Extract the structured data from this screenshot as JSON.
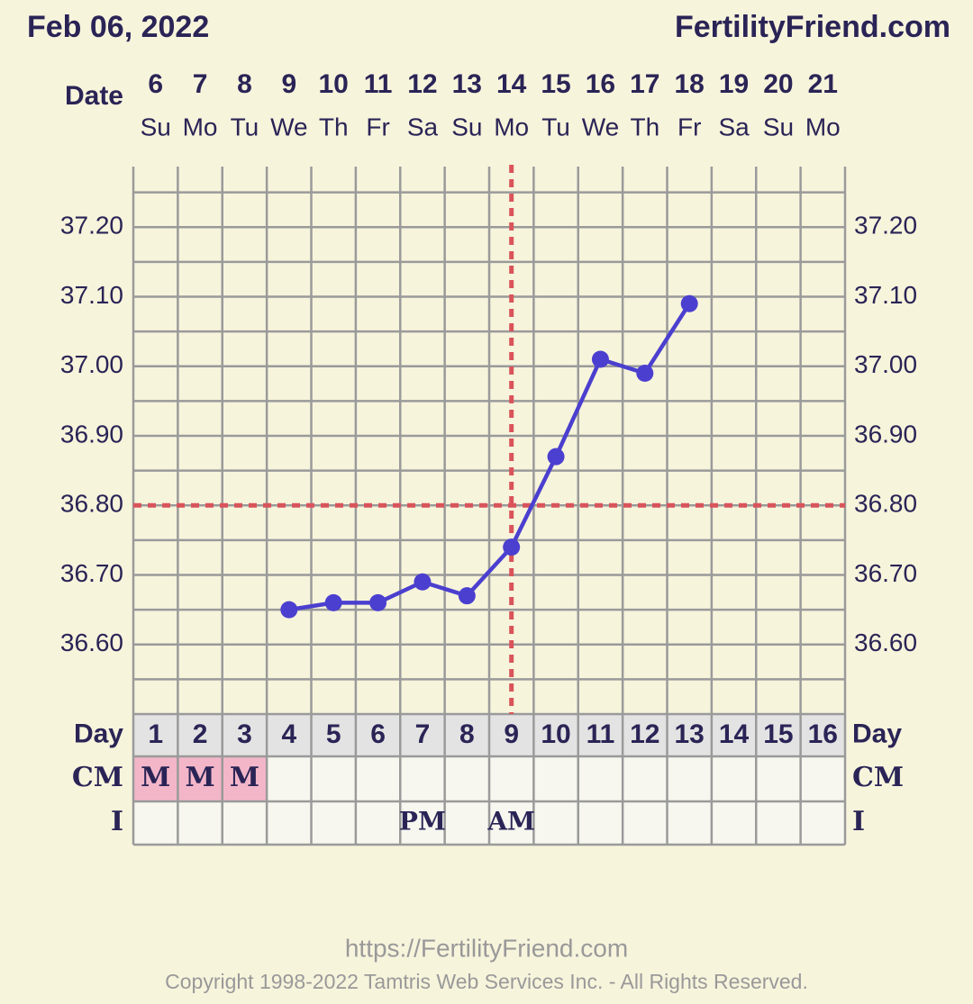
{
  "chart_data": {
    "type": "line",
    "title": "Feb 06, 2022",
    "site": "FertilityFriend.com",
    "date_label": "Date",
    "dates": [
      6,
      7,
      8,
      9,
      10,
      11,
      12,
      13,
      14,
      15,
      16,
      17,
      18,
      19,
      20,
      21
    ],
    "weekdays": [
      "Su",
      "Mo",
      "Tu",
      "We",
      "Th",
      "Fr",
      "Sa",
      "Su",
      "Mo",
      "Tu",
      "We",
      "Th",
      "Fr",
      "Sa",
      "Su",
      "Mo"
    ],
    "day_label": "Day",
    "days": [
      1,
      2,
      3,
      4,
      5,
      6,
      7,
      8,
      9,
      10,
      11,
      12,
      13,
      14,
      15,
      16
    ],
    "values": [
      null,
      null,
      null,
      36.65,
      36.66,
      36.66,
      36.69,
      36.67,
      36.74,
      36.87,
      37.01,
      36.99,
      37.09,
      null,
      null,
      null
    ],
    "color": "#4b3fcf",
    "ylim": [
      36.5,
      37.3
    ],
    "yticks": [
      {
        "value": 36.6,
        "label": "36.60"
      },
      {
        "value": 36.7,
        "label": "36.70"
      },
      {
        "value": 36.8,
        "label": "36.80"
      },
      {
        "value": 36.9,
        "label": "36.90"
      },
      {
        "value": 37.0,
        "label": "37.00"
      },
      {
        "value": 37.1,
        "label": "37.10"
      },
      {
        "value": 37.2,
        "label": "37.20"
      }
    ],
    "minor_yticks": [
      36.55,
      36.65,
      36.75,
      36.85,
      36.95,
      37.05,
      37.15,
      37.25
    ],
    "grid": true,
    "coverline": 36.8,
    "ovulation_day": 9,
    "cm_label": "CM",
    "cm": [
      "M",
      "M",
      "M",
      null,
      null,
      null,
      null,
      null,
      null,
      null,
      null,
      null,
      null,
      null,
      null,
      null
    ],
    "i_label": "I",
    "intercourse": [
      null,
      null,
      null,
      null,
      null,
      null,
      "PM",
      null,
      "AM",
      null,
      null,
      null,
      null,
      null,
      null,
      null
    ]
  },
  "footer": {
    "url": "https://FertilityFriend.com",
    "copyright": "Copyright 1998-2022 Tamtris Web Services Inc. - All Rights Reserved."
  }
}
